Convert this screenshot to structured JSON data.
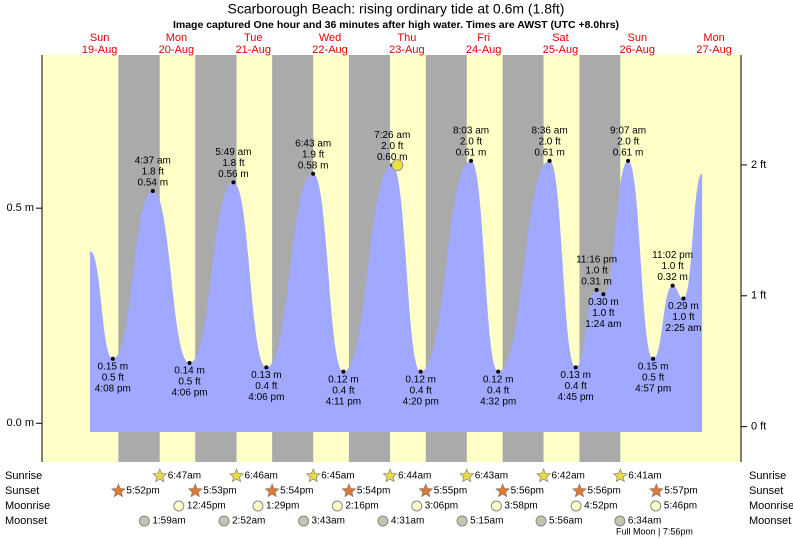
{
  "chart_data": {
    "type": "tide",
    "title": "Scarborough Beach: rising  ordinary tide at 0.6m (1.8ft)",
    "subtitle": "Image captured One hour and 36 minutes after high water. Times are AWST (UTC +8.0hrs)",
    "xlim": [
      -6,
      212.4
    ],
    "ylim": [
      -0.09,
      0.856
    ],
    "y2lim": [
      -0.27,
      2.84
    ],
    "yticks": [
      {
        "value": 0,
        "label": "0.0 m"
      },
      {
        "value": 0.5,
        "label": "0.5 m"
      }
    ],
    "y2ticks": [
      {
        "value": 0,
        "label": "0 ft"
      },
      {
        "value": 1,
        "label": "1 ft"
      },
      {
        "value": 2,
        "label": "2 ft"
      }
    ],
    "days": [
      {
        "name": "Sun",
        "date": "19-Aug"
      },
      {
        "name": "Mon",
        "date": "20-Aug"
      },
      {
        "name": "Tue",
        "date": "21-Aug"
      },
      {
        "name": "Wed",
        "date": "22-Aug"
      },
      {
        "name": "Thu",
        "date": "23-Aug"
      },
      {
        "name": "Fri",
        "date": "24-Aug"
      },
      {
        "name": "Sat",
        "date": "25-Aug"
      },
      {
        "name": "Sun",
        "date": "26-Aug"
      },
      {
        "name": "Mon",
        "date": "27-Aug"
      }
    ],
    "color": "#a0a8ff",
    "x": [
      9.0,
      16.13,
      28.62,
      40.1,
      53.82,
      64.1,
      78.72,
      88.18,
      103.43,
      112.33,
      128.05,
      136.53,
      152.6,
      160.75,
      167.27,
      169.4,
      177.12,
      184.95,
      191.03,
      194.42,
      200.25
    ],
    "values": [
      0.4,
      0.15,
      0.54,
      0.14,
      0.56,
      0.13,
      0.58,
      0.12,
      0.6,
      0.12,
      0.61,
      0.12,
      0.61,
      0.13,
      0.31,
      0.3,
      0.61,
      0.15,
      0.32,
      0.29,
      0.58
    ],
    "value_labels": [
      null,
      "0.15 m",
      "0.54 m",
      "0.14 m",
      "0.56 m",
      "0.13 m",
      "0.58 m",
      "0.12 m",
      "0.60 m",
      "0.12 m",
      "0.61 m",
      "0.12 m",
      "0.61 m",
      "0.13 m",
      "0.31 m",
      "0.30 m",
      "0.61 m",
      "0.15 m",
      "0.32 m",
      "0.29 m",
      null
    ],
    "ft_labels": [
      null,
      "0.5 ft",
      "1.8 ft",
      "0.5 ft",
      "1.8 ft",
      "0.4 ft",
      "1.9 ft",
      "0.4 ft",
      "2.0 ft",
      "0.4 ft",
      "2.0 ft",
      "0.4 ft",
      "2.0 ft",
      "0.4 ft",
      "1.0 ft",
      "1.0 ft",
      "2.0 ft",
      "0.5 ft",
      "1.0 ft",
      "1.0 ft",
      null
    ],
    "time_labels": [
      null,
      "4:08 pm",
      "4:37 am",
      "4:06 pm",
      "5:49 am",
      "4:06 pm",
      "6:43 am",
      "4:11 pm",
      "7:26 am",
      "4:20 pm",
      "8:03 am",
      "4:32 pm",
      "8:36 am",
      "4:45 pm",
      "11:16 pm",
      "1:24 am",
      "9:07 am",
      "4:57 pm",
      "11:02 pm",
      "2:25 am",
      null
    ],
    "now": {
      "x": 105.03,
      "value": 0.6
    },
    "rows": [
      {
        "name": "Sunrise",
        "times": [
          30.78,
          54.77,
          78.75,
          102.73,
          126.72,
          150.7,
          174.68
        ],
        "labels": [
          "6:47am",
          "6:46am",
          "6:45am",
          "6:44am",
          "6:43am",
          "6:42am",
          "6:41am"
        ]
      },
      {
        "name": "Sunset",
        "times": [
          17.87,
          41.88,
          65.9,
          89.9,
          113.92,
          137.93,
          161.93,
          185.95
        ],
        "labels": [
          "5:52pm",
          "5:53pm",
          "5:54pm",
          "5:54pm",
          "5:55pm",
          "5:56pm",
          "5:56pm",
          "5:57pm"
        ]
      },
      {
        "name": "Moonrise",
        "times": [
          36.75,
          61.48,
          86.27,
          111.1,
          135.97,
          160.87,
          185.77
        ],
        "labels": [
          "12:45pm",
          "1:29pm",
          "2:16pm",
          "3:06pm",
          "3:58pm",
          "4:52pm",
          "5:46pm"
        ]
      },
      {
        "name": "Moonset",
        "times": [
          25.98,
          50.87,
          75.72,
          100.52,
          125.25,
          149.93,
          174.57
        ],
        "labels": [
          "1:59am",
          "2:52am",
          "3:43am",
          "4:31am",
          "5:15am",
          "5:56am",
          "6:34am"
        ]
      }
    ],
    "full_moon": "Full Moon | 7:56pm"
  }
}
